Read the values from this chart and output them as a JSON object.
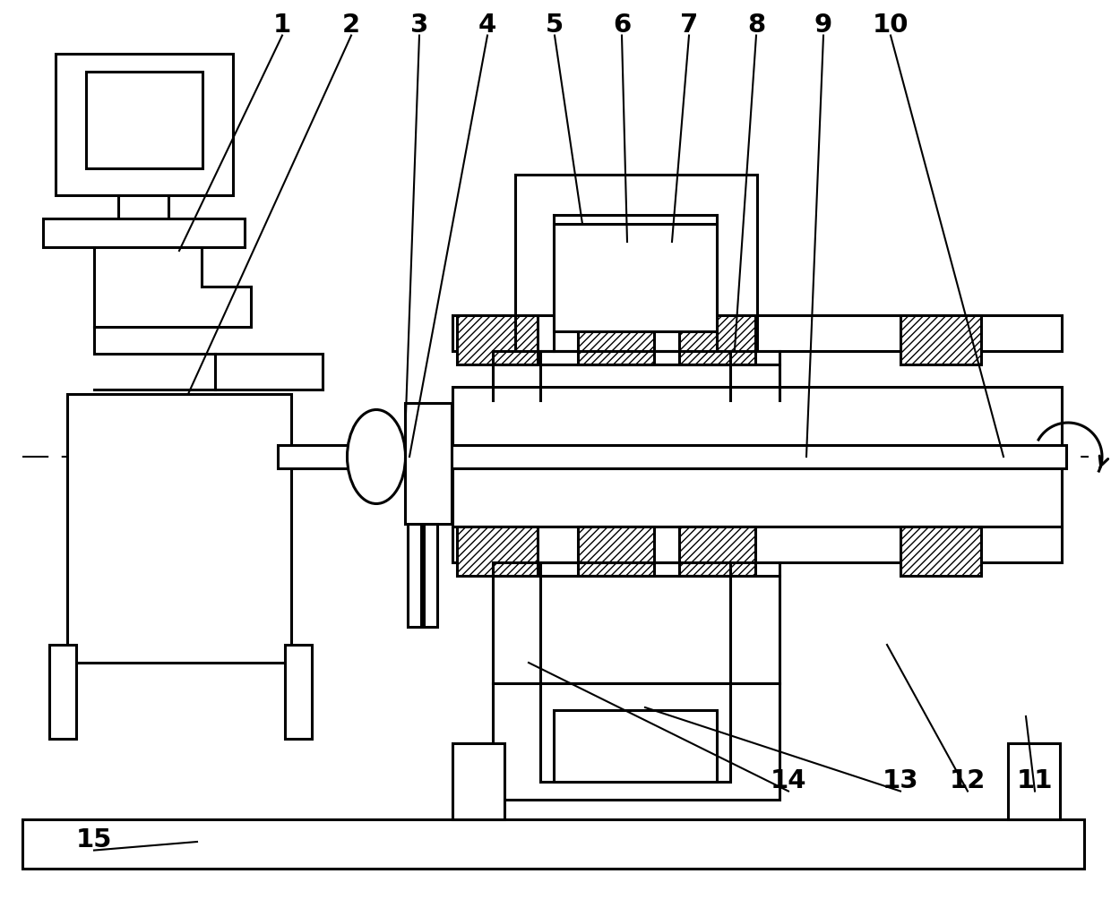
{
  "bg": "#ffffff",
  "lc": "#000000",
  "lw": 2.2,
  "lw_thin": 1.5,
  "fig_w": 12.4,
  "fig_h": 10.14,
  "dpi": 100,
  "label_fontsize": 21
}
